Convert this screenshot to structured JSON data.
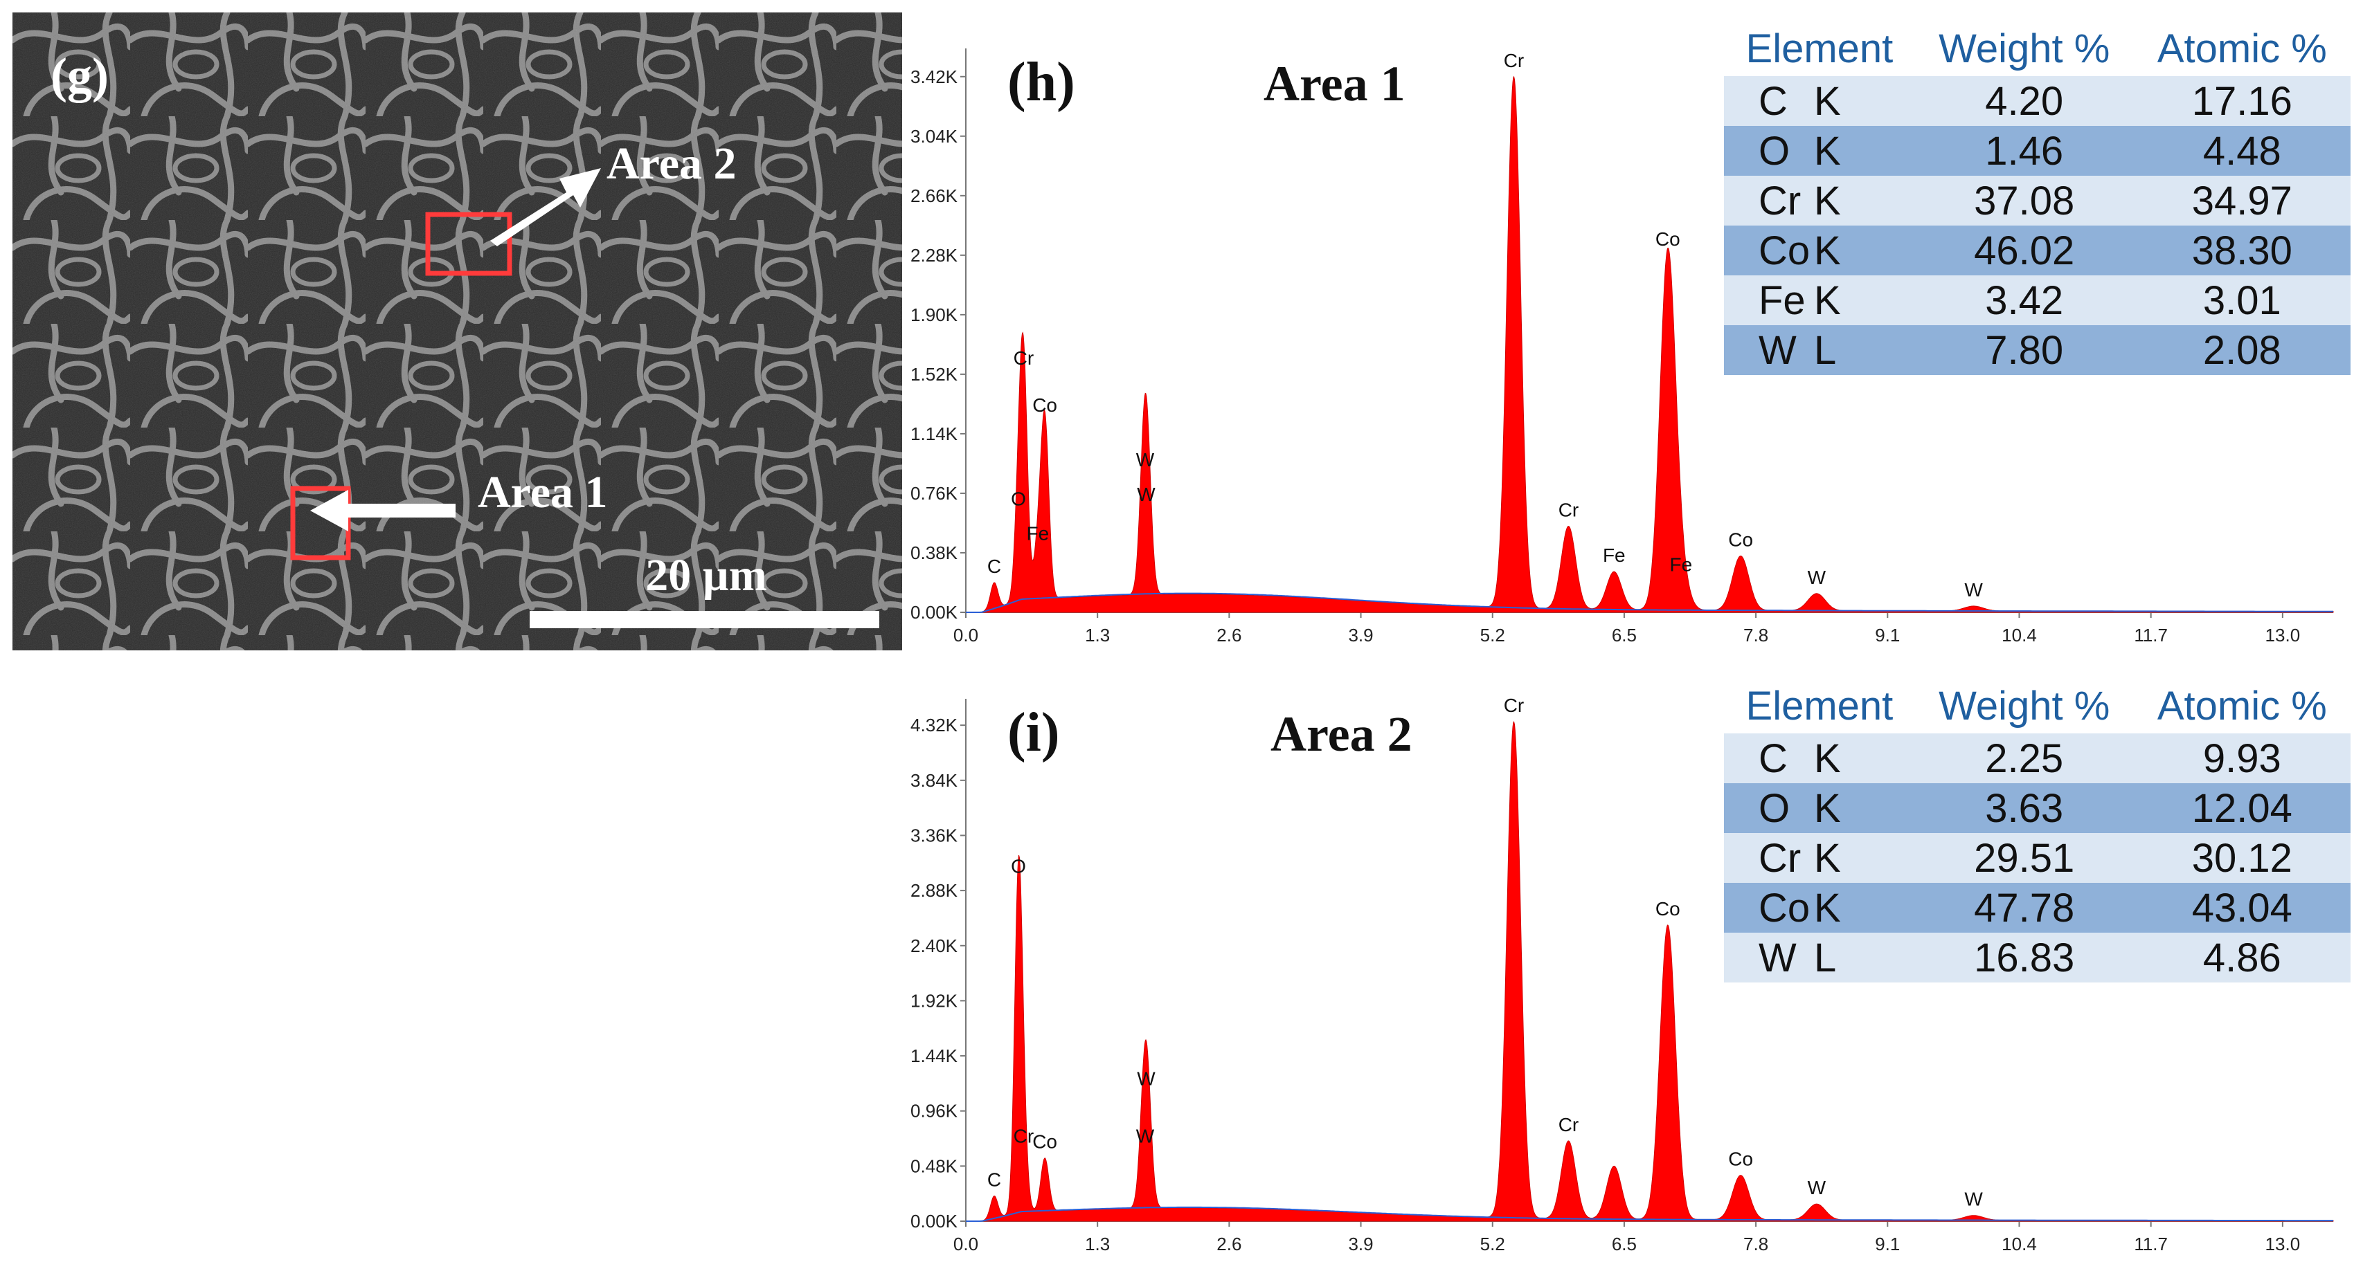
{
  "sem_panel": {
    "label": "(g)",
    "area1_label": "Area 1",
    "area2_label": "Area 2",
    "scale_bar": "20 µm",
    "colors": {
      "box": "#ff3b3b",
      "arrow": "#ffffff",
      "background": "#2a2a2a"
    }
  },
  "chart_data": [
    {
      "type": "area",
      "panel_label": "(h)",
      "title": "Area 1",
      "x_ticks": [
        "0.0",
        "1.3",
        "2.6",
        "3.9",
        "5.2",
        "6.5",
        "7.8",
        "9.1",
        "10.4",
        "11.7",
        "13.0"
      ],
      "y_ticks": [
        "0.00K",
        "0.38K",
        "0.76K",
        "1.14K",
        "1.52K",
        "1.90K",
        "2.28K",
        "2.66K",
        "3.04K",
        "3.42K"
      ],
      "xlim": [
        0,
        13.5
      ],
      "ylim": [
        0,
        3.6
      ],
      "y_unit": "K counts",
      "series_color": "#ff0000",
      "peaks": [
        {
          "label": "C",
          "x": 0.28,
          "y": 0.19
        },
        {
          "label": "O",
          "x": 0.52,
          "y": 0.62
        },
        {
          "label": "Fe",
          "x": 0.71,
          "y": 0.4
        },
        {
          "label": "Co",
          "x": 0.78,
          "y": 1.22
        },
        {
          "label": "Cr",
          "x": 0.57,
          "y": 1.52
        },
        {
          "label": "W",
          "x": 1.78,
          "y": 0.65
        },
        {
          "label": "W",
          "x": 1.77,
          "y": 0.87
        },
        {
          "label": "Cr",
          "x": 5.41,
          "y": 3.42
        },
        {
          "label": "Cr",
          "x": 5.95,
          "y": 0.55
        },
        {
          "label": "Fe",
          "x": 6.4,
          "y": 0.26
        },
        {
          "label": "Co",
          "x": 6.93,
          "y": 2.28
        },
        {
          "label": "Fe",
          "x": 7.06,
          "y": 0.2
        },
        {
          "label": "Co",
          "x": 7.65,
          "y": 0.36
        },
        {
          "label": "W",
          "x": 8.4,
          "y": 0.12
        },
        {
          "label": "W",
          "x": 9.95,
          "y": 0.04
        }
      ],
      "table": {
        "headers": [
          "Element",
          "Weight %",
          "Atomic %"
        ],
        "rows": [
          {
            "symbol": "C",
            "line": "K",
            "weight": "4.20",
            "atomic": "17.16"
          },
          {
            "symbol": "O",
            "line": "K",
            "weight": "1.46",
            "atomic": "4.48"
          },
          {
            "symbol": "Cr",
            "line": "K",
            "weight": "37.08",
            "atomic": "34.97"
          },
          {
            "symbol": "Co",
            "line": "K",
            "weight": "46.02",
            "atomic": "38.30"
          },
          {
            "symbol": "Fe",
            "line": "K",
            "weight": "3.42",
            "atomic": "3.01"
          },
          {
            "symbol": "W",
            "line": "L",
            "weight": "7.80",
            "atomic": "2.08"
          }
        ]
      }
    },
    {
      "type": "area",
      "panel_label": "(i)",
      "title": "Area 2",
      "x_ticks": [
        "0.0",
        "1.3",
        "2.6",
        "3.9",
        "5.2",
        "6.5",
        "7.8",
        "9.1",
        "10.4",
        "11.7",
        "13.0"
      ],
      "y_ticks": [
        "0.00K",
        "0.48K",
        "0.96K",
        "1.44K",
        "1.92K",
        "2.40K",
        "2.88K",
        "3.36K",
        "3.84K",
        "4.32K"
      ],
      "xlim": [
        0,
        13.5
      ],
      "ylim": [
        0,
        4.55
      ],
      "y_unit": "K counts",
      "series_color": "#ff0000",
      "peaks": [
        {
          "label": "C",
          "x": 0.28,
          "y": 0.22
        },
        {
          "label": "O",
          "x": 0.52,
          "y": 2.95
        },
        {
          "label": "Cr",
          "x": 0.57,
          "y": 0.6
        },
        {
          "label": "Co",
          "x": 0.78,
          "y": 0.55
        },
        {
          "label": "W",
          "x": 1.78,
          "y": 1.1
        },
        {
          "label": "W",
          "x": 1.77,
          "y": 0.6
        },
        {
          "label": "Cr",
          "x": 5.41,
          "y": 4.35
        },
        {
          "label": "Cr",
          "x": 5.95,
          "y": 0.7
        },
        {
          "label": "",
          "x": 6.4,
          "y": 0.48
        },
        {
          "label": "Co",
          "x": 6.93,
          "y": 2.58
        },
        {
          "label": "Co",
          "x": 7.65,
          "y": 0.4
        },
        {
          "label": "W",
          "x": 8.4,
          "y": 0.15
        },
        {
          "label": "W",
          "x": 9.95,
          "y": 0.05
        }
      ],
      "table": {
        "headers": [
          "Element",
          "Weight %",
          "Atomic %"
        ],
        "rows": [
          {
            "symbol": "C",
            "line": "K",
            "weight": "2.25",
            "atomic": "9.93"
          },
          {
            "symbol": "O",
            "line": "K",
            "weight": "3.63",
            "atomic": "12.04"
          },
          {
            "symbol": "Cr",
            "line": "K",
            "weight": "29.51",
            "atomic": "30.12"
          },
          {
            "symbol": "Co",
            "line": "K",
            "weight": "47.78",
            "atomic": "43.04"
          },
          {
            "symbol": "W",
            "line": "L",
            "weight": "16.83",
            "atomic": "4.86"
          }
        ]
      }
    }
  ]
}
